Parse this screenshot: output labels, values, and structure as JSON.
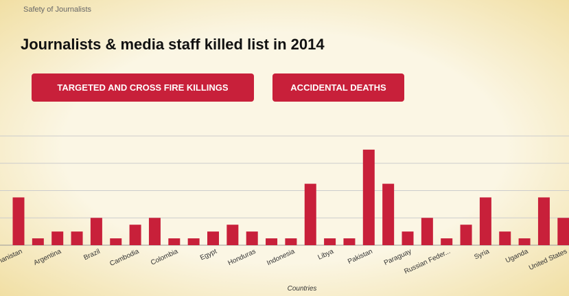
{
  "breadcrumb": "Safety of Journalists",
  "title": "Journalists & media staff killed list in 2014",
  "buttons": [
    "TARGETED AND CROSS FIRE KILLINGS",
    "ACCIDENTAL DEATHS"
  ],
  "chart_data": {
    "type": "bar",
    "x_label": "Countries",
    "categories": [
      "Afghanistan",
      null,
      "Argentina",
      null,
      "Brazil",
      null,
      "Cambodia",
      null,
      "Colombia",
      null,
      "Egypt",
      null,
      "Honduras",
      null,
      "Indonesia",
      null,
      "Libya",
      null,
      "Pakistan",
      null,
      "Paraguay",
      null,
      "Russian Feder...",
      null,
      "Syria",
      null,
      "Uganda",
      null,
      "United States"
    ],
    "values": [
      7,
      1,
      2,
      2,
      4,
      1,
      3,
      4,
      1,
      1,
      2,
      3,
      2,
      1,
      1,
      9,
      1,
      1,
      14,
      9,
      2,
      4,
      1,
      3,
      7,
      2,
      1,
      7,
      4
    ],
    "color": "#c8203a",
    "ylim": [
      0,
      16
    ],
    "yticks": [
      0,
      4,
      8,
      12,
      16
    ],
    "grid": true
  }
}
